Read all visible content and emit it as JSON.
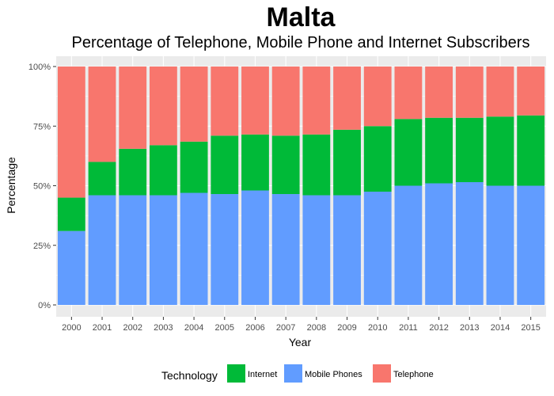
{
  "chart_data": {
    "type": "bar",
    "stacked": true,
    "title": "Malta",
    "subtitle": "Percentage of Telephone, Mobile Phone and Internet Subscribers",
    "xlabel": "Year",
    "ylabel": "Percentage",
    "ylim": [
      0,
      100
    ],
    "y_ticks": [
      "0%",
      "25%",
      "50%",
      "75%",
      "100%"
    ],
    "y_tick_values": [
      0,
      25,
      50,
      75,
      100
    ],
    "categories": [
      "2000",
      "2001",
      "2002",
      "2003",
      "2004",
      "2005",
      "2006",
      "2007",
      "2008",
      "2009",
      "2010",
      "2011",
      "2012",
      "2013",
      "2014",
      "2015"
    ],
    "grid": true,
    "legend_position": "bottom",
    "legend_title": "Technology",
    "series": [
      {
        "name": "Mobile Phones",
        "color": "#619CFF",
        "values": [
          31,
          46,
          46,
          46,
          47,
          46.5,
          48,
          46.5,
          46,
          46,
          47.5,
          50,
          51,
          51.5,
          50,
          50
        ]
      },
      {
        "name": "Internet",
        "color": "#00BA38",
        "values": [
          14,
          14,
          19.5,
          21,
          21.5,
          24.5,
          23.5,
          24.5,
          25.5,
          27.5,
          27.5,
          28,
          27.5,
          27,
          29,
          29.5
        ]
      },
      {
        "name": "Telephone",
        "color": "#F8766D",
        "values": [
          55,
          40,
          34.5,
          33,
          31.5,
          29,
          28.5,
          29,
          28.5,
          26.5,
          25,
          22,
          21.5,
          21.5,
          21,
          20.5
        ]
      }
    ],
    "legend_items": [
      {
        "name": "Internet",
        "color": "#00BA38"
      },
      {
        "name": "Mobile Phones",
        "color": "#619CFF"
      },
      {
        "name": "Telephone",
        "color": "#F8766D"
      }
    ],
    "panel_background": "#EBEBEB"
  }
}
